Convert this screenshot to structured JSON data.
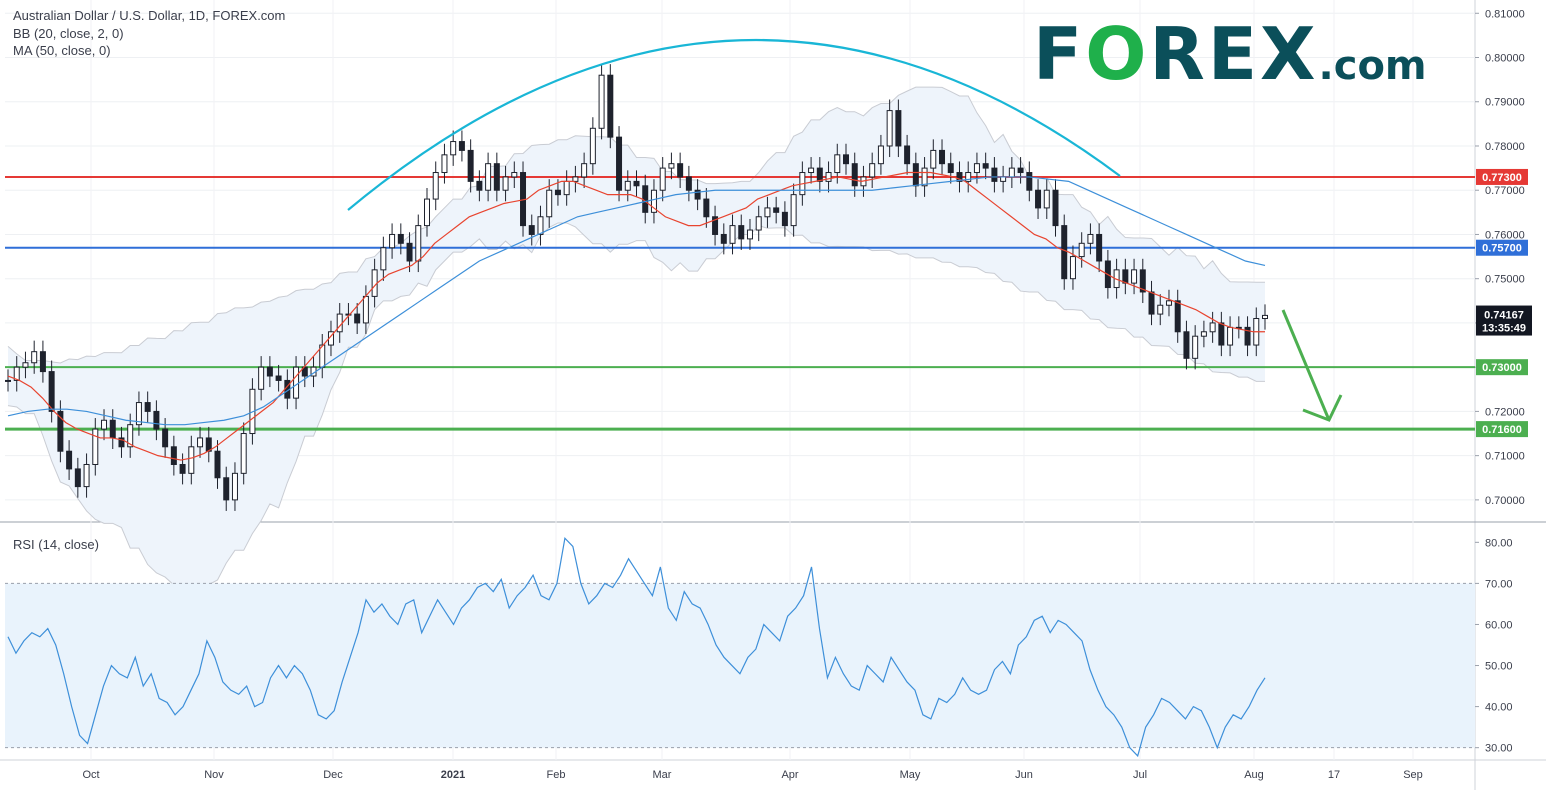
{
  "header": {
    "title": "Australian Dollar / U.S. Dollar, 1D, FOREX.com",
    "indicator_bb": "BB (20, close, 2, 0)",
    "indicator_ma": "MA (50, close, 0)",
    "rsi_label": "RSI (14, close)"
  },
  "logo": {
    "part1": "F",
    "part2": "O",
    "part3": "REX",
    "part4": ".com"
  },
  "colors": {
    "red_level": "#e53935",
    "blue_level": "#2f6fd8",
    "green_level": "#4caf50",
    "arc": "#19b6d6",
    "bb_mid": "#e8442f",
    "ma50": "#3d8fd9",
    "rsi": "#3d8fd9",
    "band_fill": "#eef4fb",
    "arrow": "#4caf50"
  },
  "chart_data": [
    {
      "type": "line",
      "title": "Australian Dollar / U.S. Dollar, 1D, FOREX.com",
      "ylim": [
        0.695,
        0.813
      ],
      "y_ticks": [
        "0.81000",
        "0.80000",
        "0.79000",
        "0.78000",
        "0.77000",
        "0.76000",
        "0.75000",
        "0.74000",
        "0.73000",
        "0.72000",
        "0.71000",
        "0.70000"
      ],
      "x_ticks": [
        "Oct",
        "Nov",
        "Dec",
        "2021",
        "Feb",
        "Mar",
        "Apr",
        "May",
        "Jun",
        "Jul",
        "Aug",
        "17",
        "Sep"
      ],
      "levels": [
        {
          "value": 0.773,
          "label": "0.77300",
          "color": "red"
        },
        {
          "value": 0.757,
          "label": "0.75700",
          "color": "blue"
        },
        {
          "value": 0.73,
          "label": "0.73000",
          "color": "green"
        },
        {
          "value": 0.716,
          "label": "0.71600",
          "color": "green"
        }
      ],
      "last_price": {
        "value": 0.74167,
        "label": "0.74167",
        "countdown": "13:35:49"
      },
      "series": [
        {
          "values": [
            0.727,
            0.73,
            0.731,
            0.7335,
            0.729,
            0.72,
            0.711,
            0.707,
            0.703,
            0.708,
            0.716,
            0.718,
            0.714,
            0.712,
            0.717,
            0.722,
            0.72,
            0.716,
            0.712,
            0.708,
            0.706,
            0.712,
            0.714,
            0.711,
            0.705,
            0.7,
            0.706,
            0.715,
            0.725,
            0.73,
            0.728,
            0.727,
            0.723,
            0.73,
            0.728,
            0.73,
            0.735,
            0.738,
            0.742,
            0.742,
            0.74,
            0.746,
            0.752,
            0.757,
            0.76,
            0.758,
            0.754,
            0.762,
            0.768,
            0.774,
            0.778,
            0.781,
            0.779,
            0.772,
            0.77,
            0.776,
            0.77,
            0.773,
            0.774,
            0.762,
            0.76,
            0.764,
            0.77,
            0.769,
            0.772,
            0.773,
            0.776,
            0.784,
            0.796,
            0.782,
            0.77,
            0.772,
            0.771,
            0.765,
            0.77,
            0.775,
            0.776,
            0.773,
            0.77,
            0.768,
            0.764,
            0.76,
            0.758,
            0.762,
            0.759,
            0.761,
            0.764,
            0.766,
            0.765,
            0.762,
            0.769,
            0.774,
            0.775,
            0.772,
            0.774,
            0.778,
            0.776,
            0.771,
            0.773,
            0.776,
            0.78,
            0.788,
            0.78,
            0.776,
            0.771,
            0.775,
            0.779,
            0.776,
            0.774,
            0.772,
            0.774,
            0.776,
            0.775,
            0.772,
            0.773,
            0.775,
            0.774,
            0.77,
            0.766,
            0.77,
            0.762,
            0.75,
            0.755,
            0.758,
            0.76,
            0.754,
            0.748,
            0.752,
            0.749,
            0.752,
            0.747,
            0.742,
            0.744,
            0.745,
            0.738,
            0.732,
            0.737,
            0.738,
            0.74,
            0.735,
            0.739,
            0.739,
            0.735,
            0.741,
            0.7417
          ]
        },
        {
          "values": [
            0.728,
            0.727,
            0.7255,
            0.723,
            0.72,
            0.7175,
            0.716,
            0.715,
            0.714,
            0.714,
            0.7135,
            0.712,
            0.711,
            0.71,
            0.7095,
            0.709,
            0.7095,
            0.7105,
            0.712,
            0.714,
            0.716,
            0.718,
            0.72,
            0.722,
            0.725,
            0.728,
            0.731,
            0.734,
            0.737,
            0.74,
            0.743,
            0.746,
            0.749,
            0.751,
            0.752,
            0.753,
            0.755,
            0.758,
            0.76,
            0.762,
            0.764,
            0.765,
            0.766,
            0.767,
            0.7675,
            0.768,
            0.77,
            0.771,
            0.772,
            0.772,
            0.771,
            0.77,
            0.769,
            0.769,
            0.769,
            0.768,
            0.766,
            0.764,
            0.763,
            0.762,
            0.762,
            0.763,
            0.764,
            0.765,
            0.766,
            0.768,
            0.769,
            0.77,
            0.771,
            0.7715,
            0.772,
            0.7725,
            0.773,
            0.7725,
            0.772,
            0.7725,
            0.773,
            0.7735,
            0.774,
            0.774,
            0.774,
            0.7735,
            0.773,
            0.772,
            0.77,
            0.768,
            0.766,
            0.764,
            0.762,
            0.76,
            0.759,
            0.757,
            0.756,
            0.7545,
            0.753,
            0.7515,
            0.75,
            0.749,
            0.748,
            0.747,
            0.746,
            0.745,
            0.744,
            0.743,
            0.7415,
            0.74,
            0.739,
            0.7385,
            0.738,
            0.738
          ]
        },
        {
          "values": [
            0.719,
            0.72,
            0.7205,
            0.7205,
            0.72,
            0.719,
            0.718,
            0.7175,
            0.717,
            0.717,
            0.7175,
            0.718,
            0.719,
            0.721,
            0.724,
            0.727,
            0.73,
            0.733,
            0.736,
            0.739,
            0.742,
            0.745,
            0.748,
            0.751,
            0.754,
            0.756,
            0.758,
            0.76,
            0.762,
            0.764,
            0.765,
            0.766,
            0.767,
            0.768,
            0.769,
            0.7695,
            0.77,
            0.77,
            0.77,
            0.77,
            0.77,
            0.77,
            0.77,
            0.77,
            0.77,
            0.7705,
            0.771,
            0.7715,
            0.772,
            0.7725,
            0.773,
            0.773,
            0.773,
            0.7725,
            0.772,
            0.77,
            0.768,
            0.766,
            0.764,
            0.762,
            0.76,
            0.758,
            0.756,
            0.754,
            0.753
          ]
        },
        {
          "values": [
            0.725,
            0.727,
            0.728,
            0.729,
            0.73,
            0.731,
            0.733,
            0.735,
            0.737,
            0.739,
            0.741,
            0.742,
            0.743,
            0.744,
            0.745,
            0.746,
            0.748,
            0.751,
            0.753,
            0.756,
            0.758,
            0.762,
            0.767,
            0.772,
            0.775,
            0.777,
            0.778,
            0.779,
            0.779,
            0.777,
            0.774,
            0.771,
            0.769,
            0.768,
            0.768,
            0.767,
            0.765,
            0.763,
            0.761,
            0.76,
            0.76,
            0.759,
            0.758,
            0.757,
            0.756,
            0.755,
            0.754,
            0.752,
            0.75,
            0.748,
            0.746,
            0.744,
            0.742,
            0.74,
            0.738,
            0.736,
            0.734,
            0.732,
            0.731,
            0.73
          ]
        }
      ]
    },
    {
      "type": "line",
      "title": "RSI (14, close)",
      "ylim": [
        27,
        83
      ],
      "y_ticks": [
        "80.00",
        "70.00",
        "60.00",
        "50.00",
        "40.00",
        "30.00"
      ],
      "band": [
        30,
        70
      ],
      "series": [
        {
          "values": [
            57,
            53,
            56,
            58,
            57,
            59,
            55,
            48,
            40,
            33,
            31,
            38,
            45,
            50,
            48,
            47,
            52,
            45,
            48,
            42,
            41,
            38,
            40,
            44,
            48,
            56,
            52,
            46,
            44,
            43,
            45,
            40,
            41,
            47,
            50,
            47,
            50,
            48,
            44,
            38,
            37,
            39,
            46,
            52,
            58,
            66,
            63,
            65,
            62,
            60,
            65,
            66,
            58,
            62,
            66,
            63,
            60,
            64,
            66,
            69,
            70,
            68,
            71,
            64,
            67,
            69,
            72,
            67,
            66,
            70,
            81,
            79,
            70,
            65,
            67,
            70,
            69,
            72,
            76,
            73,
            70,
            67,
            74,
            64,
            61,
            68,
            65,
            64,
            60,
            55,
            52,
            50,
            48,
            52,
            54,
            60,
            58,
            56,
            62,
            64,
            67,
            74,
            59,
            47,
            52,
            48,
            45,
            44,
            50,
            48,
            46,
            52,
            49,
            46,
            44,
            38,
            37,
            42,
            41,
            43,
            47,
            44,
            43,
            44,
            49,
            51,
            48,
            55,
            57,
            61,
            62,
            58,
            61,
            60,
            58,
            56,
            49,
            44,
            40,
            38,
            35,
            30,
            28,
            35,
            38,
            42,
            41,
            39,
            37,
            40,
            39,
            35,
            30,
            35,
            38,
            37,
            40,
            44,
            47
          ]
        }
      ]
    }
  ]
}
